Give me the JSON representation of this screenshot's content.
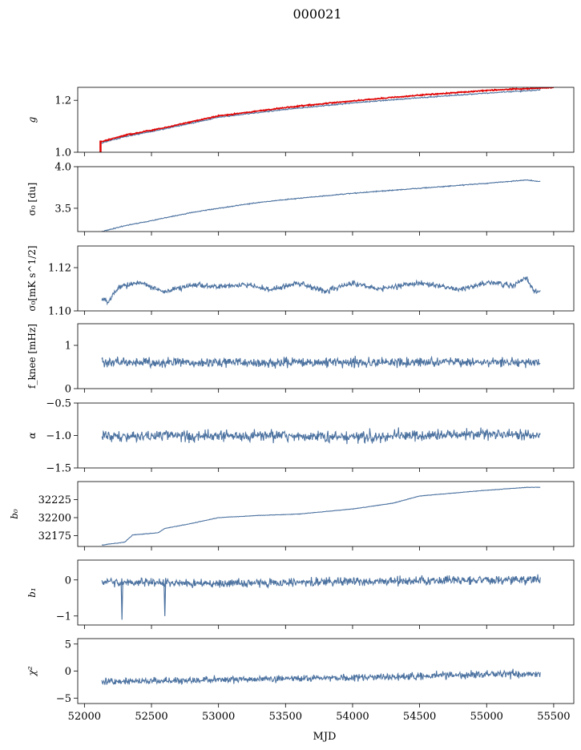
{
  "chart_data": {
    "type": "line",
    "title": "000021",
    "xlabel": "MJD",
    "xlim": [
      51950,
      55650
    ],
    "xticks": [
      52000,
      52500,
      53000,
      53500,
      54000,
      54500,
      55000,
      55500
    ],
    "colors": {
      "line": "#4c72a0",
      "highlight": "#e00000"
    },
    "panels": [
      {
        "key": "g",
        "ylabel": "g",
        "ylabel_italic": true,
        "ylim": [
          1.0,
          1.25
        ],
        "yticks": [
          1.0,
          1.2
        ],
        "ytick_labels": [
          "1.0",
          "1.2"
        ],
        "series": [
          {
            "color": "#4c72a0",
            "noise": 0.002,
            "points": [
              [
                52120,
                1.035
              ],
              [
                52300,
                1.06
              ],
              [
                52600,
                1.09
              ],
              [
                53000,
                1.135
              ],
              [
                53500,
                1.165
              ],
              [
                54000,
                1.19
              ],
              [
                54500,
                1.21
              ],
              [
                55000,
                1.228
              ],
              [
                55400,
                1.24
              ]
            ]
          },
          {
            "color": "#e00000",
            "noise": 0.002,
            "points": [
              [
                52120,
                1.04
              ],
              [
                52300,
                1.065
              ],
              [
                52600,
                1.095
              ],
              [
                53000,
                1.14
              ],
              [
                53500,
                1.172
              ],
              [
                54000,
                1.198
              ],
              [
                54500,
                1.22
              ],
              [
                55000,
                1.238
              ],
              [
                55500,
                1.25
              ]
            ]
          }
        ],
        "marker": {
          "x": 52120,
          "y0": 1.0,
          "y1": 1.045,
          "color": "#e00000"
        }
      },
      {
        "key": "sigma0_du",
        "ylabel": "σ₀ [du]",
        "ylim": [
          3.22,
          4.0
        ],
        "yticks": [
          3.5,
          4.0
        ],
        "ytick_labels": [
          "3.5",
          "4.0"
        ],
        "series": [
          {
            "color": "#4c72a0",
            "noise": 0.005,
            "points": [
              [
                52130,
                3.22
              ],
              [
                52300,
                3.29
              ],
              [
                52500,
                3.35
              ],
              [
                52800,
                3.45
              ],
              [
                53000,
                3.5
              ],
              [
                53300,
                3.57
              ],
              [
                53600,
                3.62
              ],
              [
                54000,
                3.68
              ],
              [
                54500,
                3.74
              ],
              [
                55000,
                3.8
              ],
              [
                55300,
                3.84
              ],
              [
                55400,
                3.82
              ]
            ]
          }
        ]
      },
      {
        "key": "sigma0_mk",
        "ylabel": "σ₀[mK s^1/2]",
        "ylim": [
          1.1,
          1.13
        ],
        "yticks": [
          1.1,
          1.12
        ],
        "ytick_labels": [
          "1.10",
          "1.12"
        ],
        "series": [
          {
            "color": "#4c72a0",
            "noise": 0.0012,
            "points": [
              [
                52130,
                1.106
              ],
              [
                52180,
                1.104
              ],
              [
                52250,
                1.111
              ],
              [
                52400,
                1.113
              ],
              [
                52600,
                1.109
              ],
              [
                52800,
                1.112
              ],
              [
                53000,
                1.111
              ],
              [
                53200,
                1.112
              ],
              [
                53400,
                1.11
              ],
              [
                53600,
                1.113
              ],
              [
                53800,
                1.109
              ],
              [
                54000,
                1.113
              ],
              [
                54200,
                1.11
              ],
              [
                54500,
                1.113
              ],
              [
                54800,
                1.11
              ],
              [
                55000,
                1.113
              ],
              [
                55200,
                1.112
              ],
              [
                55300,
                1.115
              ],
              [
                55350,
                1.109
              ],
              [
                55400,
                1.109
              ]
            ]
          }
        ]
      },
      {
        "key": "fknee",
        "ylabel": "f_knee [mHz]",
        "ylim": [
          0,
          1.5
        ],
        "yticks": [
          0,
          1
        ],
        "ytick_labels": [
          "0",
          "1"
        ],
        "series": [
          {
            "color": "#4c72a0",
            "noise": 0.1,
            "points": [
              [
                52130,
                0.6
              ],
              [
                53000,
                0.6
              ],
              [
                54000,
                0.6
              ],
              [
                55000,
                0.62
              ],
              [
                55400,
                0.6
              ]
            ]
          }
        ]
      },
      {
        "key": "alpha",
        "ylabel": "α",
        "ylabel_italic": true,
        "ylim": [
          -1.5,
          -0.5
        ],
        "yticks": [
          -1.5,
          -1.0,
          -0.5
        ],
        "ytick_labels": [
          "−1.5",
          "−1.0",
          "−0.5"
        ],
        "series": [
          {
            "color": "#4c72a0",
            "noise": 0.08,
            "points": [
              [
                52130,
                -1.02
              ],
              [
                53000,
                -1.0
              ],
              [
                54000,
                -1.02
              ],
              [
                55000,
                -0.98
              ],
              [
                55400,
                -1.0
              ]
            ]
          }
        ]
      },
      {
        "key": "b0",
        "ylabel": "b₀",
        "ylabel_italic": true,
        "ylim": [
          32160,
          32250
        ],
        "yticks": [
          32175,
          32200,
          32225
        ],
        "ytick_labels": [
          "32175",
          "32200",
          "32225"
        ],
        "series": [
          {
            "color": "#4c72a0",
            "noise": 0.3,
            "points": [
              [
                52130,
                32162
              ],
              [
                52300,
                32166
              ],
              [
                52360,
                32176
              ],
              [
                52550,
                32179
              ],
              [
                52600,
                32185
              ],
              [
                52800,
                32192
              ],
              [
                53000,
                32200
              ],
              [
                53300,
                32203
              ],
              [
                53600,
                32205
              ],
              [
                54000,
                32212
              ],
              [
                54300,
                32220
              ],
              [
                54500,
                32230
              ],
              [
                55000,
                32238
              ],
              [
                55300,
                32242
              ],
              [
                55400,
                32242
              ]
            ]
          }
        ]
      },
      {
        "key": "b1",
        "ylabel": "b₁",
        "ylabel_italic": true,
        "ylim": [
          -1.25,
          0.55
        ],
        "yticks": [
          -1,
          0
        ],
        "ytick_labels": [
          "−1",
          "0"
        ],
        "series": [
          {
            "color": "#4c72a0",
            "noise": 0.11,
            "points": [
              [
                52130,
                -0.05
              ],
              [
                53000,
                -0.1
              ],
              [
                54000,
                -0.05
              ],
              [
                55000,
                0.0
              ],
              [
                55400,
                0.0
              ]
            ]
          }
        ],
        "spikes": [
          [
            52280,
            -1.1
          ],
          [
            52600,
            -1.0
          ]
        ]
      },
      {
        "key": "chi2",
        "ylabel": "χ²",
        "ylabel_italic": true,
        "ylim": [
          -6,
          6
        ],
        "yticks": [
          -5,
          0,
          5
        ],
        "ytick_labels": [
          "−5",
          "0",
          "5"
        ],
        "series": [
          {
            "color": "#4c72a0",
            "noise": 0.6,
            "points": [
              [
                52130,
                -2.0
              ],
              [
                52500,
                -1.8
              ],
              [
                53000,
                -1.6
              ],
              [
                54000,
                -1.2
              ],
              [
                55000,
                -0.6
              ],
              [
                55400,
                -0.5
              ]
            ]
          }
        ]
      }
    ]
  }
}
